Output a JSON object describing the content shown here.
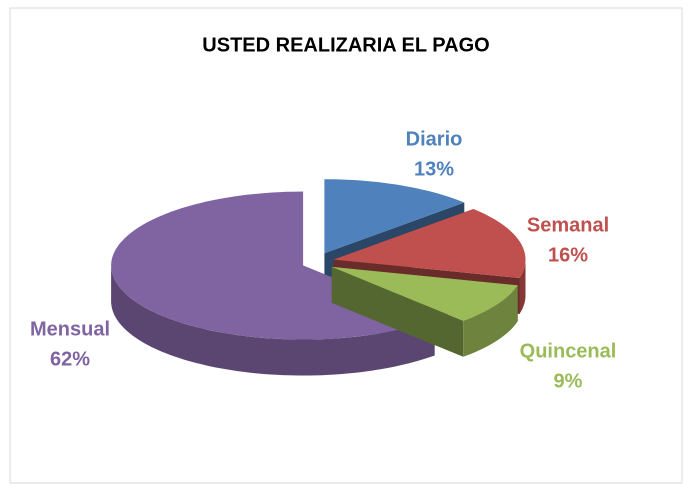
{
  "chart_data": {
    "type": "pie",
    "title": "USTED REALIZARIA EL PAGO",
    "categories": [
      "Diario",
      "Semanal",
      "Quincenal",
      "Mensual"
    ],
    "values": [
      13,
      16,
      9,
      62
    ],
    "value_labels": [
      "13%",
      "16%",
      "9%",
      "62%"
    ],
    "colors": [
      "#4f81bd",
      "#c0504d",
      "#9bbb59",
      "#8064a2"
    ]
  }
}
